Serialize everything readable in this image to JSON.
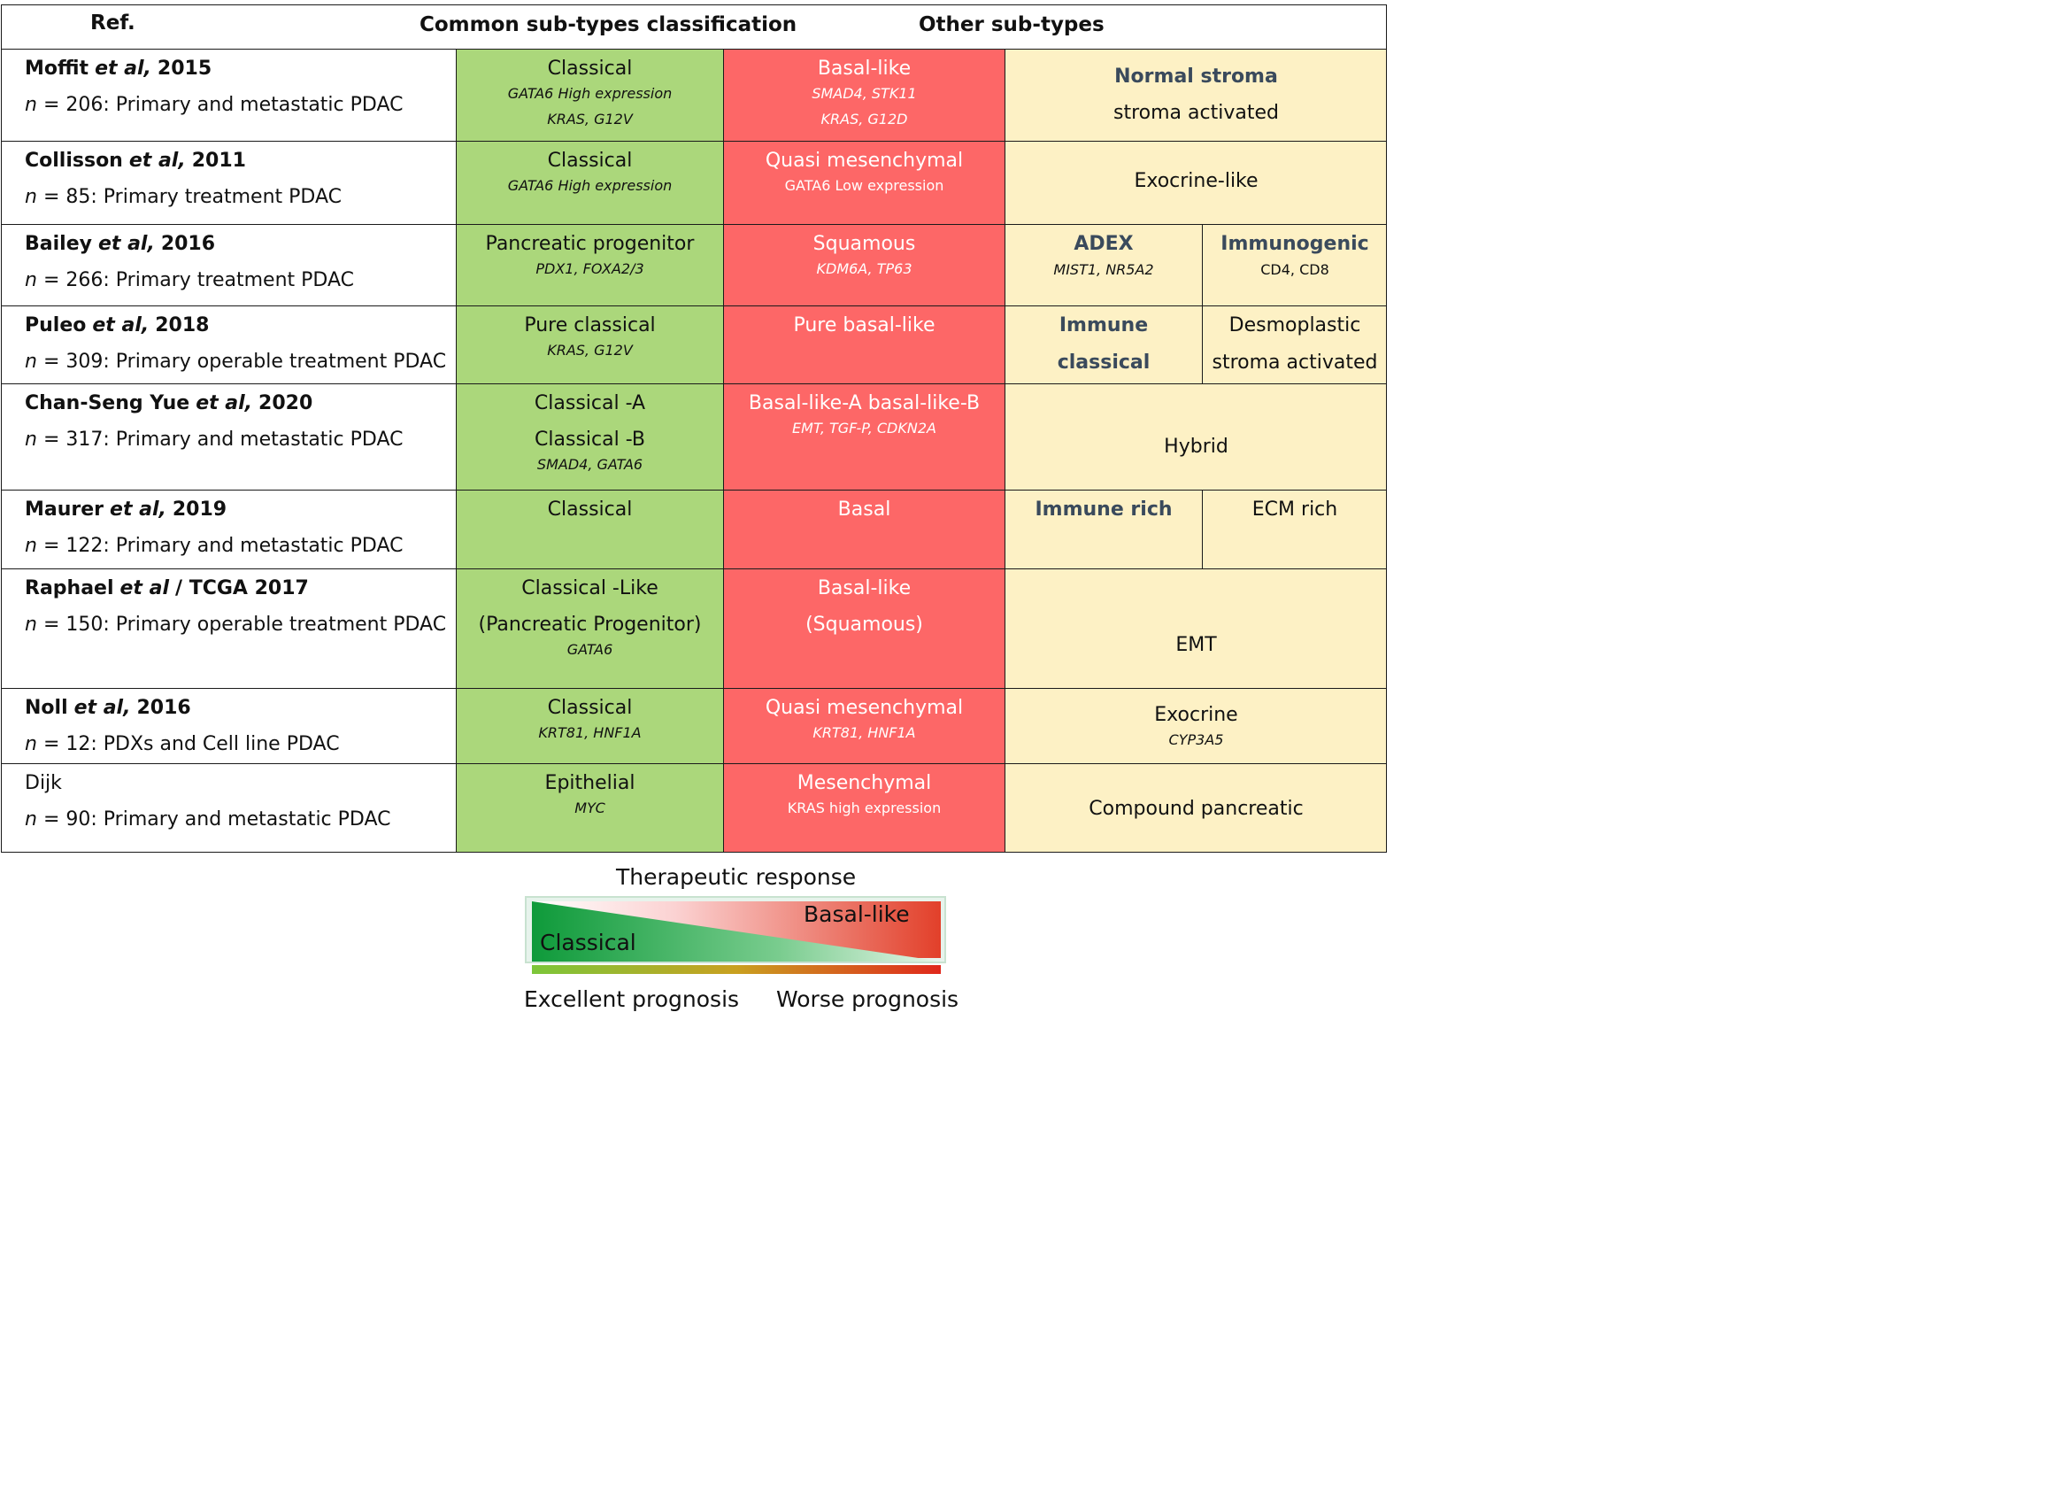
{
  "header": {
    "ref": "Ref.",
    "common": "Common sub-types classification",
    "other": "Other sub-types"
  },
  "rows": [
    {
      "ref_author": "Moffit",
      "ref_etal": "et al,",
      "ref_year": "2015",
      "ref_n": "n",
      "ref_desc": "= 206: Primary and metastatic PDAC",
      "classical": [
        "Classical"
      ],
      "classical_genes": [
        "GATA6 High expression",
        "KRAS, G12V"
      ],
      "basal": [
        "Basal-like"
      ],
      "basal_genes": [
        "SMAD4, STK11",
        "KRAS, G12D"
      ],
      "other": [
        "Normal stroma",
        "stroma activated"
      ]
    },
    {
      "ref_author": "Collisson",
      "ref_etal": "et al,",
      "ref_year": "2011",
      "ref_n": "n",
      "ref_desc": "= 85: Primary treatment PDAC",
      "classical": [
        "Classical"
      ],
      "classical_genes": [
        "GATA6 High expression"
      ],
      "basal": [
        "Quasi mesenchymal"
      ],
      "basal_genes": [
        "GATA6 Low expression"
      ],
      "other": [
        "Exocrine-like"
      ]
    },
    {
      "ref_author": "Bailey",
      "ref_etal": "et al,",
      "ref_year": "2016",
      "ref_n": "n",
      "ref_desc": "= 266: Primary treatment PDAC",
      "classical": [
        "Pancreatic progenitor"
      ],
      "classical_genes": [
        "PDX1, FOXA2/3"
      ],
      "basal": [
        "Squamous"
      ],
      "basal_genes": [
        "KDM6A, TP63"
      ],
      "other_a": [
        "ADEX"
      ],
      "other_a_genes": [
        "MIST1, NR5A2"
      ],
      "other_b": [
        "Immunogenic"
      ],
      "other_b_genes": [
        "CD4, CD8"
      ]
    },
    {
      "ref_author": "Puleo",
      "ref_etal": "et al,",
      "ref_year": "2018",
      "ref_n": "n",
      "ref_desc": "= 309: Primary operable treatment PDAC",
      "classical": [
        "Pure classical"
      ],
      "classical_genes": [
        "KRAS, G12V"
      ],
      "basal": [
        "Pure basal-like"
      ],
      "other_a": [
        "Immune",
        "classical"
      ],
      "other_b": [
        "Desmoplastic",
        "stroma activated"
      ]
    },
    {
      "ref_author": "Chan-Seng Yue",
      "ref_etal": "et al,",
      "ref_year": "2020",
      "ref_n": "n",
      "ref_desc": "= 317: Primary and metastatic PDAC",
      "classical": [
        "Classical -A",
        "Classical -B"
      ],
      "classical_genes": [
        "SMAD4, GATA6"
      ],
      "basal": [
        "Basal-like-A  basal-like-B"
      ],
      "basal_genes": [
        "EMT,  TGF-P,  CDKN2A"
      ],
      "other": [
        "Hybrid"
      ]
    },
    {
      "ref_author": "Maurer",
      "ref_etal": "et al,",
      "ref_year": "2019",
      "ref_n": "n",
      "ref_desc": "= 122: Primary and metastatic PDAC",
      "classical": [
        "Classical"
      ],
      "basal": [
        "Basal"
      ],
      "other_a": [
        "Immune rich"
      ],
      "other_b": [
        "ECM rich"
      ]
    },
    {
      "ref_author": "Raphael",
      "ref_etal": "et al",
      "ref_year": "/ TCGA 2017",
      "ref_n": "n",
      "ref_desc": "= 150: Primary operable treatment PDAC",
      "classical": [
        "Classical -Like",
        "(Pancreatic Progenitor)"
      ],
      "classical_genes": [
        "GATA6"
      ],
      "basal": [
        "Basal-like",
        "(Squamous)"
      ],
      "other": [
        "EMT"
      ]
    },
    {
      "ref_author": "Noll",
      "ref_etal": "et al,",
      "ref_year": "2016",
      "ref_n": "n",
      "ref_desc": "= 12: PDXs and Cell line PDAC",
      "classical": [
        "Classical"
      ],
      "classical_genes": [
        "KRT81, HNF1A"
      ],
      "basal": [
        "Quasi mesenchymal"
      ],
      "basal_genes": [
        "KRT81, HNF1A"
      ],
      "other": [
        "Exocrine"
      ],
      "other_genes": [
        "CYP3A5"
      ]
    },
    {
      "ref_plain": "Dijk",
      "ref_n": "n",
      "ref_desc": "= 90: Primary and metastatic PDAC",
      "classical": [
        "Epithelial"
      ],
      "classical_genes": [
        "MYC"
      ],
      "basal": [
        "Mesenchymal"
      ],
      "basal_genes": [
        "KRAS high expression"
      ],
      "other": [
        "Compound pancreatic"
      ]
    }
  ],
  "legend": {
    "title": "Therapeutic response",
    "classical": "Classical",
    "basal": "Basal-like",
    "excellent": "Excellent prognosis",
    "worse": "Worse prognosis"
  },
  "colors": {
    "classical_col": "#abd77b",
    "basal_col": "#fd6767",
    "other_col": "#fdf1c5",
    "bold_label": "#3a4a5c"
  }
}
